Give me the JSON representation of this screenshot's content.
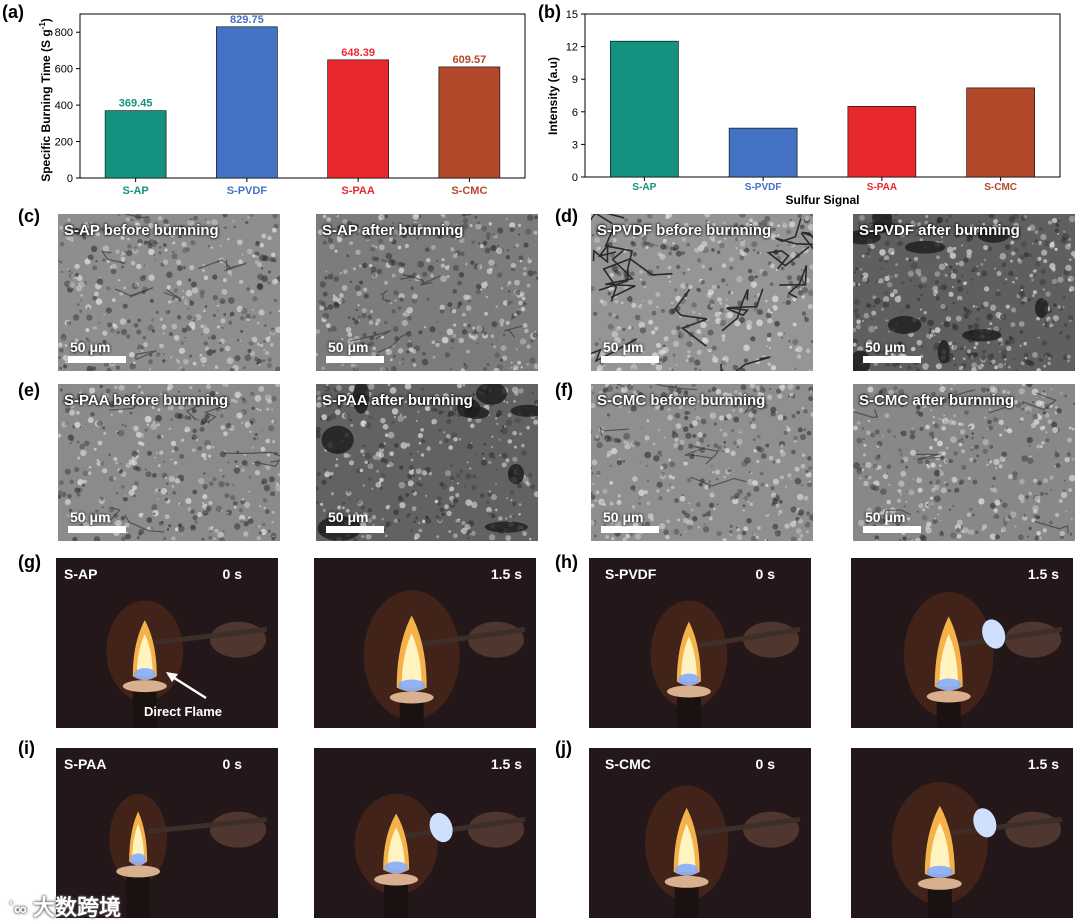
{
  "panels": {
    "a": "(a)",
    "b": "(b)",
    "c": "(c)",
    "d": "(d)",
    "e": "(e)",
    "f": "(f)",
    "g": "(g)",
    "h": "(h)",
    "i": "(i)",
    "j": "(j)"
  },
  "chart_data": [
    {
      "type": "bar",
      "categories": [
        "S-AP",
        "S-PVDF",
        "S-PAA",
        "S-CMC"
      ],
      "values": [
        369.45,
        829.75,
        648.39,
        609.57
      ],
      "data_labels": [
        "369.45",
        "829.75",
        "648.39",
        "609.57"
      ],
      "colors": [
        "#14917f",
        "#4472c4",
        "#e8282f",
        "#b2492a"
      ],
      "title": "",
      "xlabel": "",
      "ylabel_main": "Specific Burning Time (S g",
      "ylabel_sup": "-1",
      "ylabel_close": ")",
      "ylim": [
        0,
        900
      ],
      "yticks": [
        "0",
        "200",
        "400",
        "600",
        "800"
      ],
      "legend": "none",
      "grid": false
    },
    {
      "type": "bar",
      "categories": [
        "S-AP",
        "S-PVDF",
        "S-PAA",
        "S-CMC"
      ],
      "values": [
        12.5,
        4.5,
        6.5,
        8.2
      ],
      "colors": [
        "#14917f",
        "#4472c4",
        "#e8282f",
        "#b2492a"
      ],
      "title": "",
      "xlabel": "Sulfur Signal",
      "ylabel": "Intensity (a.u)",
      "ylim": [
        0,
        15
      ],
      "yticks": [
        "0",
        "3",
        "6",
        "9",
        "12",
        "15"
      ],
      "legend": "none",
      "grid": false
    }
  ],
  "sem": {
    "scale": "50 μm",
    "images": [
      {
        "label": "S-AP before burnning",
        "base": "#8e8e8e",
        "texture": "dense"
      },
      {
        "label": "S-AP after burnning",
        "base": "#7c7c7c",
        "texture": "porous"
      },
      {
        "label": "S-PVDF before burnning",
        "base": "#959595",
        "texture": "cracked"
      },
      {
        "label": "S-PVDF after burnning",
        "base": "#5f5f5f",
        "texture": "aggregate"
      },
      {
        "label": "S-PAA before burnning",
        "base": "#8b8b8b",
        "texture": "dense"
      },
      {
        "label": "S-PAA after burnning",
        "base": "#626262",
        "texture": "holes"
      },
      {
        "label": "S-CMC before burnning",
        "base": "#8f8f8f",
        "texture": "grainy"
      },
      {
        "label": "S-CMC after burnning",
        "base": "#888888",
        "texture": "grainy"
      }
    ]
  },
  "photos": [
    {
      "label": "S-AP",
      "time": "0 s",
      "annotation": "Direct Flame"
    },
    {
      "label": "",
      "time": "1.5 s",
      "annotation": ""
    },
    {
      "label": "S-PVDF",
      "time": "0 s",
      "annotation": ""
    },
    {
      "label": "",
      "time": "1.5 s",
      "annotation": ""
    },
    {
      "label": "S-PAA",
      "time": "0 s",
      "annotation": ""
    },
    {
      "label": "",
      "time": "1.5 s",
      "annotation": ""
    },
    {
      "label": "S-CMC",
      "time": "0 s",
      "annotation": ""
    },
    {
      "label": "",
      "time": "1.5 s",
      "annotation": ""
    }
  ],
  "watermark": "大数跨境"
}
